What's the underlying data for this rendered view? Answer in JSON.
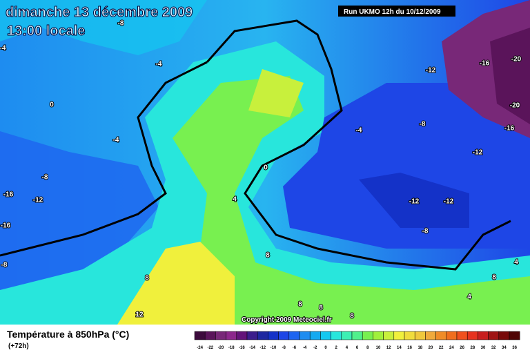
{
  "header": {
    "title": "dimanche 13 décembre 2009",
    "subtitle": "13:00 locale",
    "run": "Run UKMO 12h du 10/12/2009"
  },
  "contour_labels": [
    "-8",
    "-4",
    "-4",
    "0",
    "-4",
    "-8",
    "-16",
    "-12",
    "-16",
    "-8",
    "0",
    "4",
    "-4",
    "-8",
    "-12",
    "-16",
    "-20",
    "-20",
    "-16",
    "-12",
    "-12",
    "-12",
    "-8",
    "8",
    "8",
    "12",
    "8",
    "8",
    "8",
    "4",
    "8",
    "4"
  ],
  "copyright": "Copyright 2009 Meteociel.fr",
  "legend": {
    "title": "Température à 850hPa (°C)",
    "lead": "(+72h)",
    "labels": [
      -24,
      -22,
      -20,
      -18,
      -16,
      -14,
      -12,
      -10,
      -8,
      -6,
      -4,
      -2,
      0,
      2,
      4,
      6,
      8,
      10,
      12,
      14,
      16,
      18,
      20,
      22,
      24,
      26,
      28,
      30,
      32,
      34,
      36
    ],
    "colors": [
      "#3c0a3c",
      "#5a145a",
      "#782878",
      "#8c288c",
      "#64147a",
      "#3c1e8c",
      "#1e28a0",
      "#1432c8",
      "#1e46e6",
      "#1e64f0",
      "#1e8cf0",
      "#14aaf0",
      "#14c8f0",
      "#28e6dc",
      "#3cf0b4",
      "#50f08c",
      "#78f050",
      "#a0f03c",
      "#c8f03c",
      "#f0f03c",
      "#f0dc3c",
      "#f0c83c",
      "#f0aa3c",
      "#f08c28",
      "#f06e1e",
      "#f0501e",
      "#e6321e",
      "#c81e1e",
      "#a01414",
      "#780a0a",
      "#500505"
    ]
  }
}
